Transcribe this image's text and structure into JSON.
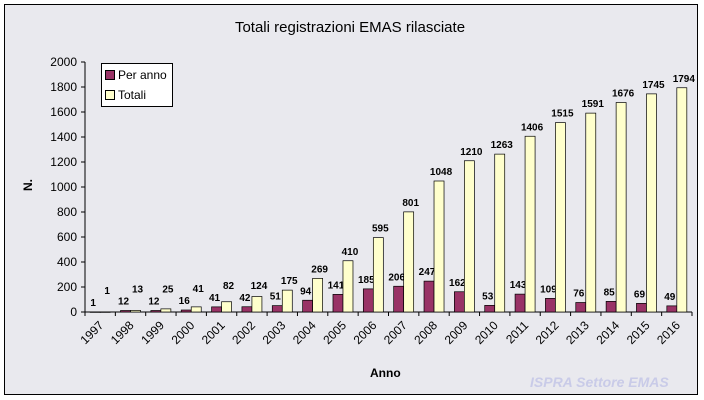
{
  "watermark": "ISPRA Settore EMAS",
  "chart_data": {
    "type": "bar",
    "title": "Totali registrazioni EMAS rilasciate",
    "xlabel": "Anno",
    "ylabel": "N.",
    "ylim": [
      0,
      2000
    ],
    "yticks": [
      0,
      200,
      400,
      600,
      800,
      1000,
      1200,
      1400,
      1600,
      1800,
      2000
    ],
    "grid": false,
    "legend_position": "top-left",
    "categories": [
      "1997",
      "1998",
      "1999",
      "2000",
      "2001",
      "2002",
      "2003",
      "2004",
      "2005",
      "2006",
      "2007",
      "2008",
      "2009",
      "2010",
      "2011",
      "2012",
      "2013",
      "2014",
      "2015",
      "2016"
    ],
    "series": [
      {
        "name": "Per anno",
        "color": "#993366",
        "values": [
          1,
          12,
          12,
          16,
          41,
          42,
          51,
          94,
          141,
          185,
          206,
          247,
          162,
          53,
          143,
          109,
          76,
          85,
          69,
          49
        ]
      },
      {
        "name": "Totali",
        "color": "#ffffcc",
        "values": [
          1,
          13,
          25,
          41,
          82,
          124,
          175,
          269,
          410,
          595,
          801,
          1048,
          1210,
          1263,
          1406,
          1515,
          1591,
          1676,
          1745,
          1794
        ]
      }
    ]
  }
}
